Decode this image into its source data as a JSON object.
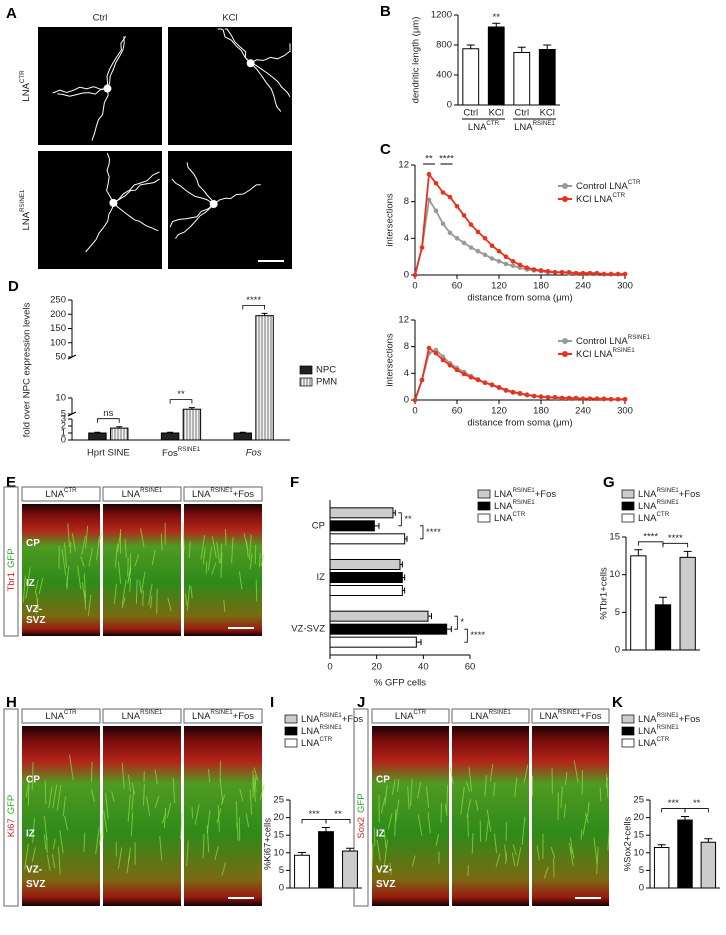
{
  "images": [
    {
      "label": "A",
      "columns": [
        "Ctrl",
        "KCl"
      ],
      "rows": [
        [
          "LNA",
          "CTR"
        ],
        [
          "LNA",
          "RSINE1"
        ]
      ]
    },
    {
      "label": "E",
      "columns": [
        [
          "LNA",
          "CTR"
        ],
        [
          "LNA",
          "RSINE1"
        ],
        [
          "LNA",
          "RSINE1",
          "+Fos"
        ]
      ],
      "stain": [
        "Tbr1",
        "GFP"
      ],
      "regions": [
        "CP",
        "IZ",
        "VZ-",
        "SVZ"
      ]
    },
    {
      "label": "H",
      "columns": [
        [
          "LNA",
          "CTR"
        ],
        [
          "LNA",
          "RSINE1"
        ],
        [
          "LNA",
          "RSINE1",
          "+Fos"
        ]
      ],
      "stain": [
        "Ki67",
        "GFP"
      ],
      "regions": [
        "CP",
        "IZ",
        "VZ-",
        "SVZ"
      ]
    },
    {
      "label": "J",
      "columns": [
        [
          "LNA",
          "CTR"
        ],
        [
          "LNA",
          "RSINE1"
        ],
        [
          "LNA",
          "RSINE1",
          "+Fos"
        ]
      ],
      "stain": [
        "Sox2",
        "GFP"
      ],
      "regions": [
        "CP",
        "IZ",
        "VZ-",
        "SVZ"
      ]
    }
  ],
  "chart_data": [
    {
      "type": "bar",
      "label": "B",
      "ylabel": "dendritic length (μm)",
      "categories": [
        "Ctrl",
        "KCl",
        "Ctrl",
        "KCl"
      ],
      "groups": [
        [
          "LNA",
          "CTR"
        ],
        [
          "LNA",
          "RSINE1"
        ]
      ],
      "values": [
        750,
        1040,
        700,
        740
      ],
      "errors": [
        50,
        50,
        70,
        60
      ],
      "colors": [
        "#ffffff",
        "#000000",
        "#ffffff",
        "#000000"
      ],
      "ylim": [
        0,
        1200
      ],
      "yticks": [
        0,
        400,
        800,
        1200
      ],
      "annotations": [
        "**"
      ]
    },
    {
      "type": "line",
      "label": "C",
      "xlabel": "distance from soma (μm)",
      "ylabel": "intersections",
      "x": [
        0,
        10,
        20,
        30,
        40,
        50,
        60,
        70,
        80,
        90,
        100,
        110,
        120,
        130,
        140,
        150,
        160,
        170,
        180,
        190,
        200,
        210,
        220,
        230,
        240,
        250,
        260,
        270,
        280,
        290,
        300
      ],
      "series": [
        {
          "name": [
            "Control LNA",
            "CTR"
          ],
          "color": "#999999",
          "values": [
            0,
            3,
            8.2,
            7,
            5.6,
            4.6,
            4,
            3.5,
            3,
            2.6,
            2.2,
            1.8,
            1.5,
            1.2,
            1,
            0.8,
            0.6,
            0.5,
            0.4,
            0.3,
            0.3,
            0.3,
            0.2,
            0.2,
            0.2,
            0.2,
            0.2,
            0.1,
            0.1,
            0.1,
            0.1
          ]
        },
        {
          "name": [
            "KCl LNA",
            "CTR"
          ],
          "color": "#e8321e",
          "values": [
            0,
            3,
            11,
            10,
            9,
            8.5,
            7.5,
            6.5,
            5.5,
            4.7,
            4,
            3.2,
            2.6,
            2,
            1.5,
            1.1,
            0.8,
            0.6,
            0.5,
            0.4,
            0.3,
            0.3,
            0.3,
            0.2,
            0.2,
            0.2,
            0.2,
            0.1,
            0.1,
            0.1,
            0.1
          ]
        }
      ],
      "xlim": [
        0,
        300
      ],
      "xticks": [
        0,
        60,
        120,
        180,
        240,
        300
      ],
      "ylim": [
        0,
        12
      ],
      "yticks": [
        0,
        4,
        8,
        12
      ],
      "annotations": [
        "**",
        "****"
      ]
    },
    {
      "type": "line",
      "xlabel": "distance from soma (μm)",
      "ylabel": "intersections",
      "x": [
        0,
        10,
        20,
        30,
        40,
        50,
        60,
        70,
        80,
        90,
        100,
        110,
        120,
        130,
        140,
        150,
        160,
        170,
        180,
        190,
        200,
        210,
        220,
        230,
        240,
        250,
        260,
        270,
        280,
        290,
        300
      ],
      "series": [
        {
          "name": [
            "Control LNA",
            "RSINE1"
          ],
          "color": "#999999",
          "values": [
            0,
            3,
            7,
            7.5,
            6.5,
            5.5,
            4.8,
            4.2,
            3.6,
            3.1,
            2.6,
            2.2,
            1.8,
            1.4,
            1.1,
            0.9,
            0.7,
            0.6,
            0.5,
            0.4,
            0.3,
            0.3,
            0.3,
            0.2,
            0.2,
            0.2,
            0.2,
            0.1,
            0.1,
            0.1,
            0.1
          ]
        },
        {
          "name": [
            "KCl LNA",
            "RSINE1"
          ],
          "color": "#e8321e",
          "values": [
            0,
            3,
            7.8,
            7,
            6,
            5.2,
            4.5,
            3.9,
            3.4,
            3,
            2.6,
            2.3,
            1.9,
            1.5,
            1.2,
            1,
            0.8,
            0.6,
            0.5,
            0.4,
            0.4,
            0.3,
            0.3,
            0.3,
            0.2,
            0.2,
            0.2,
            0.2,
            0.1,
            0.1,
            0.1
          ]
        }
      ],
      "xlim": [
        0,
        300
      ],
      "xticks": [
        0,
        60,
        120,
        180,
        240,
        300
      ],
      "ylim": [
        0,
        12
      ],
      "yticks": [
        0,
        4,
        8,
        12
      ]
    },
    {
      "type": "bar",
      "label": "D",
      "ylabel": "fold over NPC expression levels",
      "categories": [
        "Hprt SINE",
        [
          "Fos",
          "RSINE1"
        ],
        "Fos"
      ],
      "series": [
        {
          "name": "NPC",
          "color": "#222222",
          "values": [
            1,
            1,
            1
          ],
          "errors": [
            0.1,
            0.1,
            0.1
          ]
        },
        {
          "name": "PMN",
          "color": "#f2f2f2",
          "values": [
            1.7,
            6.5,
            195
          ],
          "errors": [
            0.2,
            0.5,
            8
          ]
        }
      ],
      "y_segments": [
        {
          "ylim": [
            0,
            3
          ],
          "yticks": [
            0,
            1,
            2,
            3
          ]
        },
        {
          "ylim": [
            5,
            10
          ],
          "yticks": [
            5,
            10
          ]
        },
        {
          "ylim": [
            50,
            250
          ],
          "yticks": [
            50,
            100,
            150,
            200,
            250
          ]
        }
      ],
      "annotations": [
        "ns",
        "**",
        "****"
      ]
    },
    {
      "type": "barh",
      "label": "F",
      "xlabel": "% GFP cells",
      "categories": [
        "CP",
        "IZ",
        "VZ-SVZ"
      ],
      "series": [
        {
          "name": [
            "LNA",
            "RSINE1",
            "+Fos"
          ],
          "color": "#cccccc",
          "values": [
            27,
            30,
            42
          ],
          "errors": [
            1,
            1,
            1.5
          ]
        },
        {
          "name": [
            "LNA",
            "RSINE1"
          ],
          "color": "#000000",
          "values": [
            19,
            31,
            50
          ],
          "errors": [
            2,
            1,
            2
          ]
        },
        {
          "name": [
            "LNA",
            "CTR"
          ],
          "color": "#ffffff",
          "values": [
            32,
            31,
            37
          ],
          "errors": [
            1,
            1,
            2
          ]
        }
      ],
      "xlim": [
        0,
        60
      ],
      "xticks": [
        0,
        20,
        40,
        60
      ],
      "annotations": [
        "**",
        "****",
        "*",
        "****"
      ]
    },
    {
      "type": "bar",
      "label": "G",
      "ylabel": "%Tbr1+cells",
      "categories": [
        [
          "LNA",
          "CTR"
        ],
        [
          "LNA",
          "RSINE1"
        ],
        [
          "LNA",
          "RSINE1",
          "+Fos"
        ]
      ],
      "values": [
        12.5,
        6,
        12.3
      ],
      "errors": [
        0.8,
        1,
        0.8
      ],
      "colors": [
        "#ffffff",
        "#000000",
        "#cccccc"
      ],
      "ylim": [
        0,
        15
      ],
      "yticks": [
        0,
        5,
        10,
        15
      ],
      "annotations": [
        "****",
        "****"
      ]
    },
    {
      "type": "bar",
      "label": "I",
      "ylabel": "%Ki67+cells",
      "categories": [
        [
          "LNA",
          "CTR"
        ],
        [
          "LNA",
          "RSINE1"
        ],
        [
          "LNA",
          "RSINE1",
          "+Fos"
        ]
      ],
      "values": [
        9.3,
        16,
        10.5
      ],
      "errors": [
        0.8,
        1.2,
        0.8
      ],
      "colors": [
        "#ffffff",
        "#000000",
        "#cccccc"
      ],
      "ylim": [
        0,
        25
      ],
      "yticks": [
        0,
        5,
        10,
        15,
        20,
        25
      ],
      "annotations": [
        "***",
        "**"
      ]
    },
    {
      "type": "bar",
      "label": "K",
      "ylabel": "%Sox2+cells",
      "categories": [
        [
          "LNA",
          "CTR"
        ],
        [
          "LNA",
          "RSINE1"
        ],
        [
          "LNA",
          "RSINE1",
          "+Fos"
        ]
      ],
      "values": [
        11.5,
        19.3,
        13
      ],
      "errors": [
        0.8,
        1,
        1
      ],
      "colors": [
        "#ffffff",
        "#000000",
        "#cccccc"
      ],
      "ylim": [
        0,
        25
      ],
      "yticks": [
        0,
        5,
        10,
        15,
        20,
        25
      ],
      "annotations": [
        "***",
        "**"
      ]
    }
  ]
}
